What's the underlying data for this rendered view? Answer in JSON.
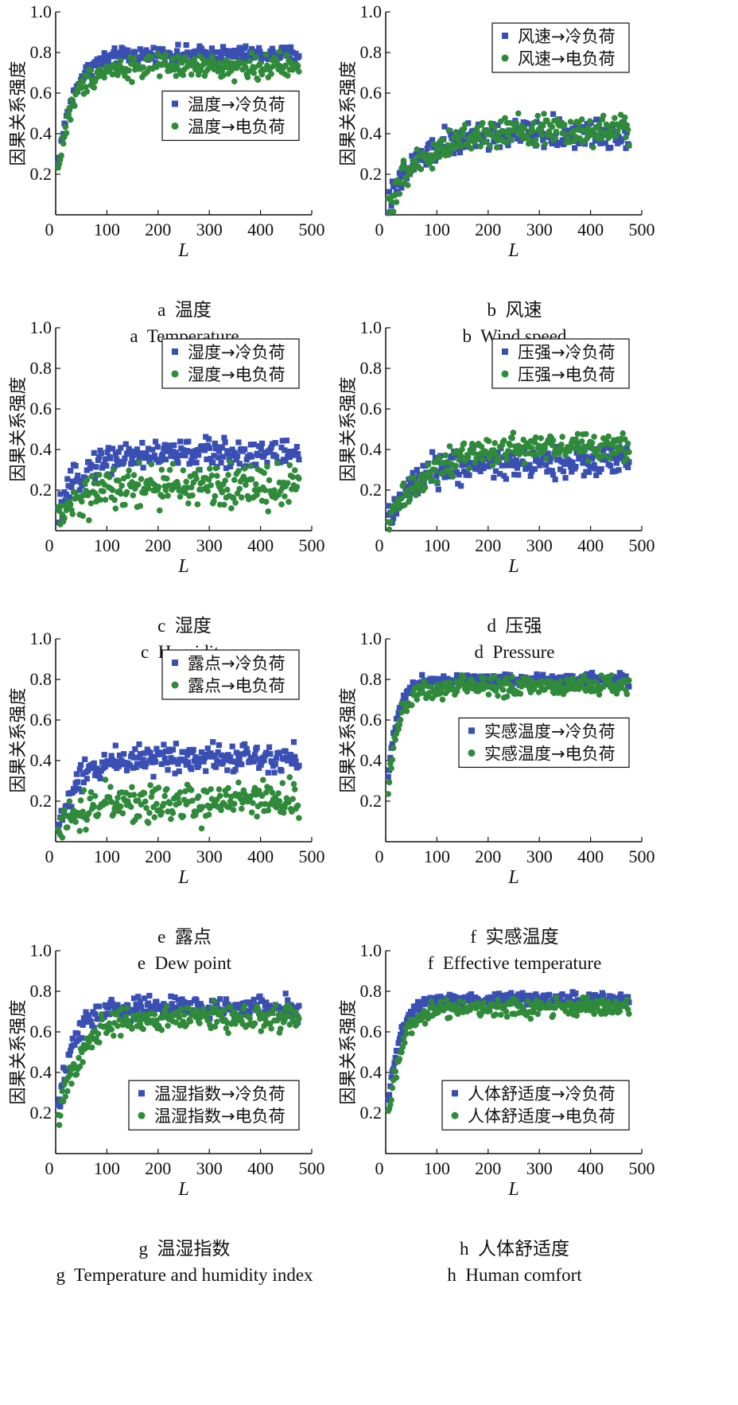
{
  "colors": {
    "series1": "#3a4fb4",
    "series2": "#2f8a3a"
  },
  "chart_data": [
    {
      "type": "scatter",
      "id": "a",
      "caption_cn": "a  温度",
      "caption_en": "a  Temperature",
      "xlabel": "L",
      "ylabel": "因果关系强度",
      "xlim": [
        0,
        500
      ],
      "ylim": [
        0,
        1.0
      ],
      "xticks": [
        0,
        100,
        200,
        300,
        400,
        500
      ],
      "yticks": [
        0.2,
        0.4,
        0.6,
        0.8,
        1.0
      ],
      "legend_position": "center-right",
      "series": [
        {
          "name": "温度→冷负荷",
          "marker": "square",
          "color": "#3a4fb4",
          "curve": {
            "start": 0.15,
            "plateau": 0.79,
            "k": 30,
            "noise": 0.025
          }
        },
        {
          "name": "温度→电负荷",
          "marker": "circle",
          "color": "#2f8a3a",
          "curve": {
            "start": 0.12,
            "plateau": 0.73,
            "k": 28,
            "noise": 0.035
          }
        }
      ]
    },
    {
      "type": "scatter",
      "id": "b",
      "caption_cn": "b  风速",
      "caption_en": "b  Wind speed",
      "xlabel": "L",
      "ylabel": "因果关系强度",
      "xlim": [
        0,
        500
      ],
      "ylim": [
        0,
        1.0
      ],
      "xticks": [
        0,
        100,
        200,
        300,
        400,
        500
      ],
      "yticks": [
        0.2,
        0.4,
        0.6,
        0.8,
        1.0
      ],
      "legend_position": "top-right",
      "series": [
        {
          "name": "风速→冷负荷",
          "marker": "square",
          "color": "#3a4fb4",
          "curve": {
            "start": 0.02,
            "plateau": 0.4,
            "k": 60,
            "noise": 0.045
          }
        },
        {
          "name": "风速→电负荷",
          "marker": "circle",
          "color": "#2f8a3a",
          "curve": {
            "start": 0.02,
            "plateau": 0.42,
            "k": 70,
            "noise": 0.045
          }
        }
      ]
    },
    {
      "type": "scatter",
      "id": "c",
      "caption_cn": "c  湿度",
      "caption_en": "c  Humidity",
      "xlabel": "L",
      "ylabel": "因果关系强度",
      "xlim": [
        0,
        500
      ],
      "ylim": [
        0,
        1.0
      ],
      "xticks": [
        0,
        100,
        200,
        300,
        400,
        500
      ],
      "yticks": [
        0.2,
        0.4,
        0.6,
        0.8,
        1.0
      ],
      "legend_position": "top-right",
      "series": [
        {
          "name": "湿度→冷负荷",
          "marker": "square",
          "color": "#3a4fb4",
          "curve": {
            "start": 0.02,
            "plateau": 0.38,
            "k": 40,
            "noise": 0.045
          }
        },
        {
          "name": "湿度→电负荷",
          "marker": "circle",
          "color": "#2f8a3a",
          "curve": {
            "start": 0.02,
            "plateau": 0.22,
            "k": 45,
            "noise": 0.065
          }
        }
      ]
    },
    {
      "type": "scatter",
      "id": "d",
      "caption_cn": "d  压强",
      "caption_en": "d  Pressure",
      "xlabel": "L",
      "ylabel": "因果关系强度",
      "xlim": [
        0,
        500
      ],
      "ylim": [
        0,
        1.0
      ],
      "xticks": [
        0,
        100,
        200,
        300,
        400,
        500
      ],
      "yticks": [
        0.2,
        0.4,
        0.6,
        0.8,
        1.0
      ],
      "legend_position": "top-right",
      "series": [
        {
          "name": "压强→冷负荷",
          "marker": "square",
          "color": "#3a4fb4",
          "curve": {
            "start": 0.02,
            "plateau": 0.34,
            "k": 55,
            "noise": 0.05
          }
        },
        {
          "name": "压强→电负荷",
          "marker": "circle",
          "color": "#2f8a3a",
          "curve": {
            "start": 0.02,
            "plateau": 0.42,
            "k": 80,
            "noise": 0.045
          }
        }
      ]
    },
    {
      "type": "scatter",
      "id": "e",
      "caption_cn": "e  露点",
      "caption_en": "e  Dew point",
      "xlabel": "L",
      "ylabel": "因果关系强度",
      "xlim": [
        0,
        500
      ],
      "ylim": [
        0,
        1.0
      ],
      "xticks": [
        0,
        100,
        200,
        300,
        400,
        500
      ],
      "yticks": [
        0.2,
        0.4,
        0.6,
        0.8,
        1.0
      ],
      "legend_position": "top-right",
      "series": [
        {
          "name": "露点→冷负荷",
          "marker": "square",
          "color": "#3a4fb4",
          "curve": {
            "start": 0.02,
            "plateau": 0.42,
            "k": 40,
            "noise": 0.045
          }
        },
        {
          "name": "露点→电负荷",
          "marker": "circle",
          "color": "#2f8a3a",
          "curve": {
            "start": 0.02,
            "plateau": 0.2,
            "k": 45,
            "noise": 0.06
          }
        }
      ]
    },
    {
      "type": "scatter",
      "id": "f",
      "caption_cn": "f  实感温度",
      "caption_en": "f  Effective temperature",
      "xlabel": "L",
      "ylabel": "因果关系强度",
      "xlim": [
        0,
        500
      ],
      "ylim": [
        0,
        1.0
      ],
      "xticks": [
        0,
        100,
        200,
        300,
        400,
        500
      ],
      "yticks": [
        0.2,
        0.4,
        0.6,
        0.8,
        1.0
      ],
      "legend_position": "center-right",
      "series": [
        {
          "name": "实感温度→冷负荷",
          "marker": "square",
          "color": "#3a4fb4",
          "curve": {
            "start": 0.15,
            "plateau": 0.8,
            "k": 18,
            "noise": 0.018
          }
        },
        {
          "name": "实感温度→电负荷",
          "marker": "circle",
          "color": "#2f8a3a",
          "curve": {
            "start": 0.13,
            "plateau": 0.77,
            "k": 22,
            "noise": 0.03
          }
        }
      ]
    },
    {
      "type": "scatter",
      "id": "g",
      "caption_cn": "g  温湿指数",
      "caption_en": "g  Temperature and humidity index",
      "xlabel": "L",
      "ylabel": "因果关系强度",
      "xlim": [
        0,
        500
      ],
      "ylim": [
        0,
        1.0
      ],
      "xticks": [
        0,
        100,
        200,
        300,
        400,
        500
      ],
      "yticks": [
        0.2,
        0.4,
        0.6,
        0.8,
        1.0
      ],
      "legend_position": "bottom-right",
      "series": [
        {
          "name": "温湿指数→冷负荷",
          "marker": "square",
          "color": "#3a4fb4",
          "curve": {
            "start": 0.1,
            "plateau": 0.72,
            "k": 28,
            "noise": 0.035
          }
        },
        {
          "name": "温湿指数→电负荷",
          "marker": "circle",
          "color": "#2f8a3a",
          "curve": {
            "start": 0.07,
            "plateau": 0.67,
            "k": 38,
            "noise": 0.04
          }
        }
      ]
    },
    {
      "type": "scatter",
      "id": "h",
      "caption_cn": "h  人体舒适度",
      "caption_en": "h  Human comfort",
      "xlabel": "L",
      "ylabel": "因果关系强度",
      "xlim": [
        0,
        500
      ],
      "ylim": [
        0,
        1.0
      ],
      "xticks": [
        0,
        100,
        200,
        300,
        400,
        500
      ],
      "yticks": [
        0.2,
        0.4,
        0.6,
        0.8,
        1.0
      ],
      "legend_position": "bottom-right",
      "series": [
        {
          "name": "人体舒适度→冷负荷",
          "marker": "square",
          "color": "#3a4fb4",
          "curve": {
            "start": 0.1,
            "plateau": 0.76,
            "k": 22,
            "noise": 0.02
          }
        },
        {
          "name": "人体舒适度→电负荷",
          "marker": "circle",
          "color": "#2f8a3a",
          "curve": {
            "start": 0.05,
            "plateau": 0.72,
            "k": 26,
            "noise": 0.028
          }
        }
      ]
    }
  ]
}
